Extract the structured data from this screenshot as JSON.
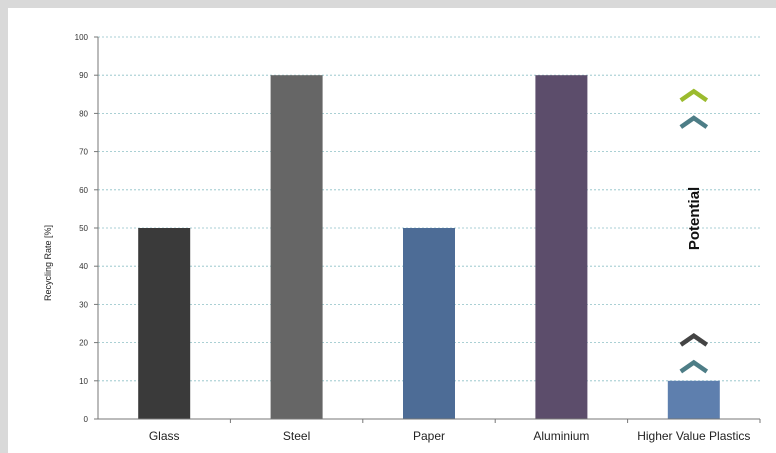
{
  "chart_data": {
    "type": "bar",
    "title": "",
    "xlabel": "",
    "ylabel": "Recycling Rate [%]",
    "ylim": [
      0,
      100
    ],
    "yticks": [
      0,
      10,
      20,
      30,
      40,
      50,
      60,
      70,
      80,
      90,
      100
    ],
    "grid": true,
    "categories": [
      "Glass",
      "Steel",
      "Paper",
      "Aluminium",
      "Higher Value Plastics"
    ],
    "values": [
      50,
      90,
      50,
      90,
      10
    ],
    "colors": [
      "#3a3a3a",
      "#666666",
      "#4d6c96",
      "#5c4d6b",
      "#5e7fae"
    ],
    "annotation": {
      "text": "Potential",
      "category": "Higher Value Plastics",
      "chevron_colors": [
        "#9bbb2e",
        "#4d7d86",
        "#444444",
        "#4d7d86"
      ]
    }
  }
}
